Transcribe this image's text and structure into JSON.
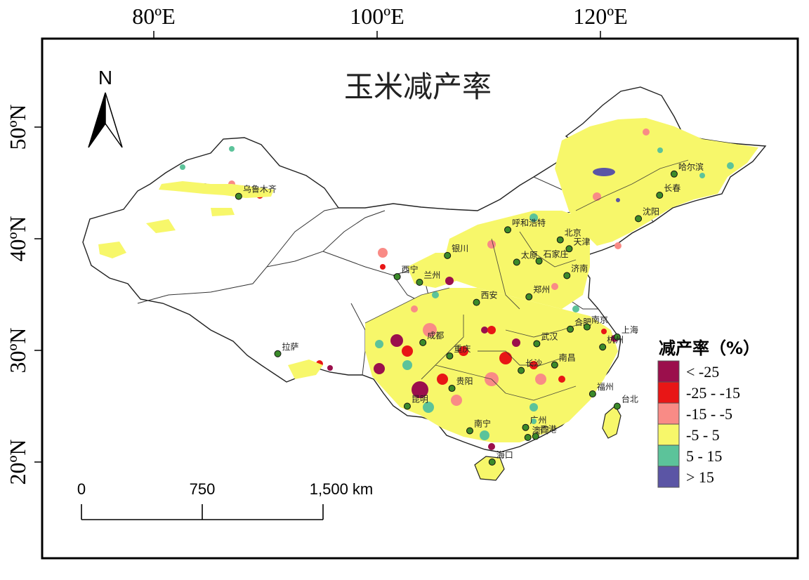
{
  "map": {
    "title": "玉米减产率",
    "lon_labels": [
      {
        "text": "80ºE",
        "lon": 80
      },
      {
        "text": "100ºE",
        "lon": 100
      },
      {
        "text": "120ºE",
        "lon": 120
      }
    ],
    "lat_labels": [
      {
        "text": "50ºN",
        "lat": 50
      },
      {
        "text": "40ºN",
        "lat": 40
      },
      {
        "text": "30ºN",
        "lat": 30
      },
      {
        "text": "20ºN",
        "lat": 20
      }
    ],
    "north_label": "N",
    "scale": {
      "ticks": [
        "0",
        "750",
        "1,500 km"
      ]
    },
    "cities": [
      {
        "name": "乌鲁木齐",
        "lon": 87.6,
        "lat": 43.8
      },
      {
        "name": "拉萨",
        "lon": 91.1,
        "lat": 29.7
      },
      {
        "name": "西宁",
        "lon": 101.8,
        "lat": 36.6
      },
      {
        "name": "兰州",
        "lon": 103.8,
        "lat": 36.1
      },
      {
        "name": "银川",
        "lon": 106.3,
        "lat": 38.5
      },
      {
        "name": "呼和浩特",
        "lon": 111.7,
        "lat": 40.8
      },
      {
        "name": "北京",
        "lon": 116.4,
        "lat": 39.9
      },
      {
        "name": "天津",
        "lon": 117.2,
        "lat": 39.1
      },
      {
        "name": "太原",
        "lon": 112.5,
        "lat": 37.9
      },
      {
        "name": "石家庄",
        "lon": 114.5,
        "lat": 38.0
      },
      {
        "name": "济南",
        "lon": 117.0,
        "lat": 36.7
      },
      {
        "name": "郑州",
        "lon": 113.6,
        "lat": 34.8
      },
      {
        "name": "西安",
        "lon": 108.9,
        "lat": 34.3
      },
      {
        "name": "成都",
        "lon": 104.1,
        "lat": 30.7
      },
      {
        "name": "重庆",
        "lon": 106.5,
        "lat": 29.5
      },
      {
        "name": "贵阳",
        "lon": 106.7,
        "lat": 26.6
      },
      {
        "name": "昆明",
        "lon": 102.7,
        "lat": 25.0
      },
      {
        "name": "南宁",
        "lon": 108.3,
        "lat": 22.8
      },
      {
        "name": "广州",
        "lon": 113.3,
        "lat": 23.1
      },
      {
        "name": "澳门",
        "lon": 113.5,
        "lat": 22.2
      },
      {
        "name": "香港",
        "lon": 114.2,
        "lat": 22.3
      },
      {
        "name": "海口",
        "lon": 110.3,
        "lat": 20.0
      },
      {
        "name": "长沙",
        "lon": 112.9,
        "lat": 28.2
      },
      {
        "name": "武汉",
        "lon": 114.3,
        "lat": 30.6
      },
      {
        "name": "南昌",
        "lon": 115.9,
        "lat": 28.7
      },
      {
        "name": "合肥",
        "lon": 117.3,
        "lat": 31.9
      },
      {
        "name": "南京",
        "lon": 118.8,
        "lat": 32.1
      },
      {
        "name": "上海",
        "lon": 121.5,
        "lat": 31.2
      },
      {
        "name": "杭州",
        "lon": 120.2,
        "lat": 30.3
      },
      {
        "name": "福州",
        "lon": 119.3,
        "lat": 26.1
      },
      {
        "name": "台北",
        "lon": 121.5,
        "lat": 25.0
      },
      {
        "name": "沈阳",
        "lon": 123.4,
        "lat": 41.8
      },
      {
        "name": "长春",
        "lon": 125.3,
        "lat": 43.9
      },
      {
        "name": "哈尔滨",
        "lon": 126.6,
        "lat": 45.8
      }
    ]
  },
  "legend": {
    "title": "减产率（%）",
    "items": [
      {
        "label": "<  -25",
        "color": "#9b0f4c"
      },
      {
        "label": "-25 - -15",
        "color": "#e81616"
      },
      {
        "label": "-15 - -5",
        "color": "#f98b86"
      },
      {
        "label": "-5 - 5",
        "color": "#f7f76a"
      },
      {
        "label": "5 - 15",
        "color": "#5cc39a"
      },
      {
        "label": ">  15",
        "color": "#5b55a5"
      }
    ]
  },
  "colors": {
    "frame": "#000000",
    "boundary": "#333333",
    "city_dot": "#3b8a2a",
    "background": "#ffffff"
  }
}
